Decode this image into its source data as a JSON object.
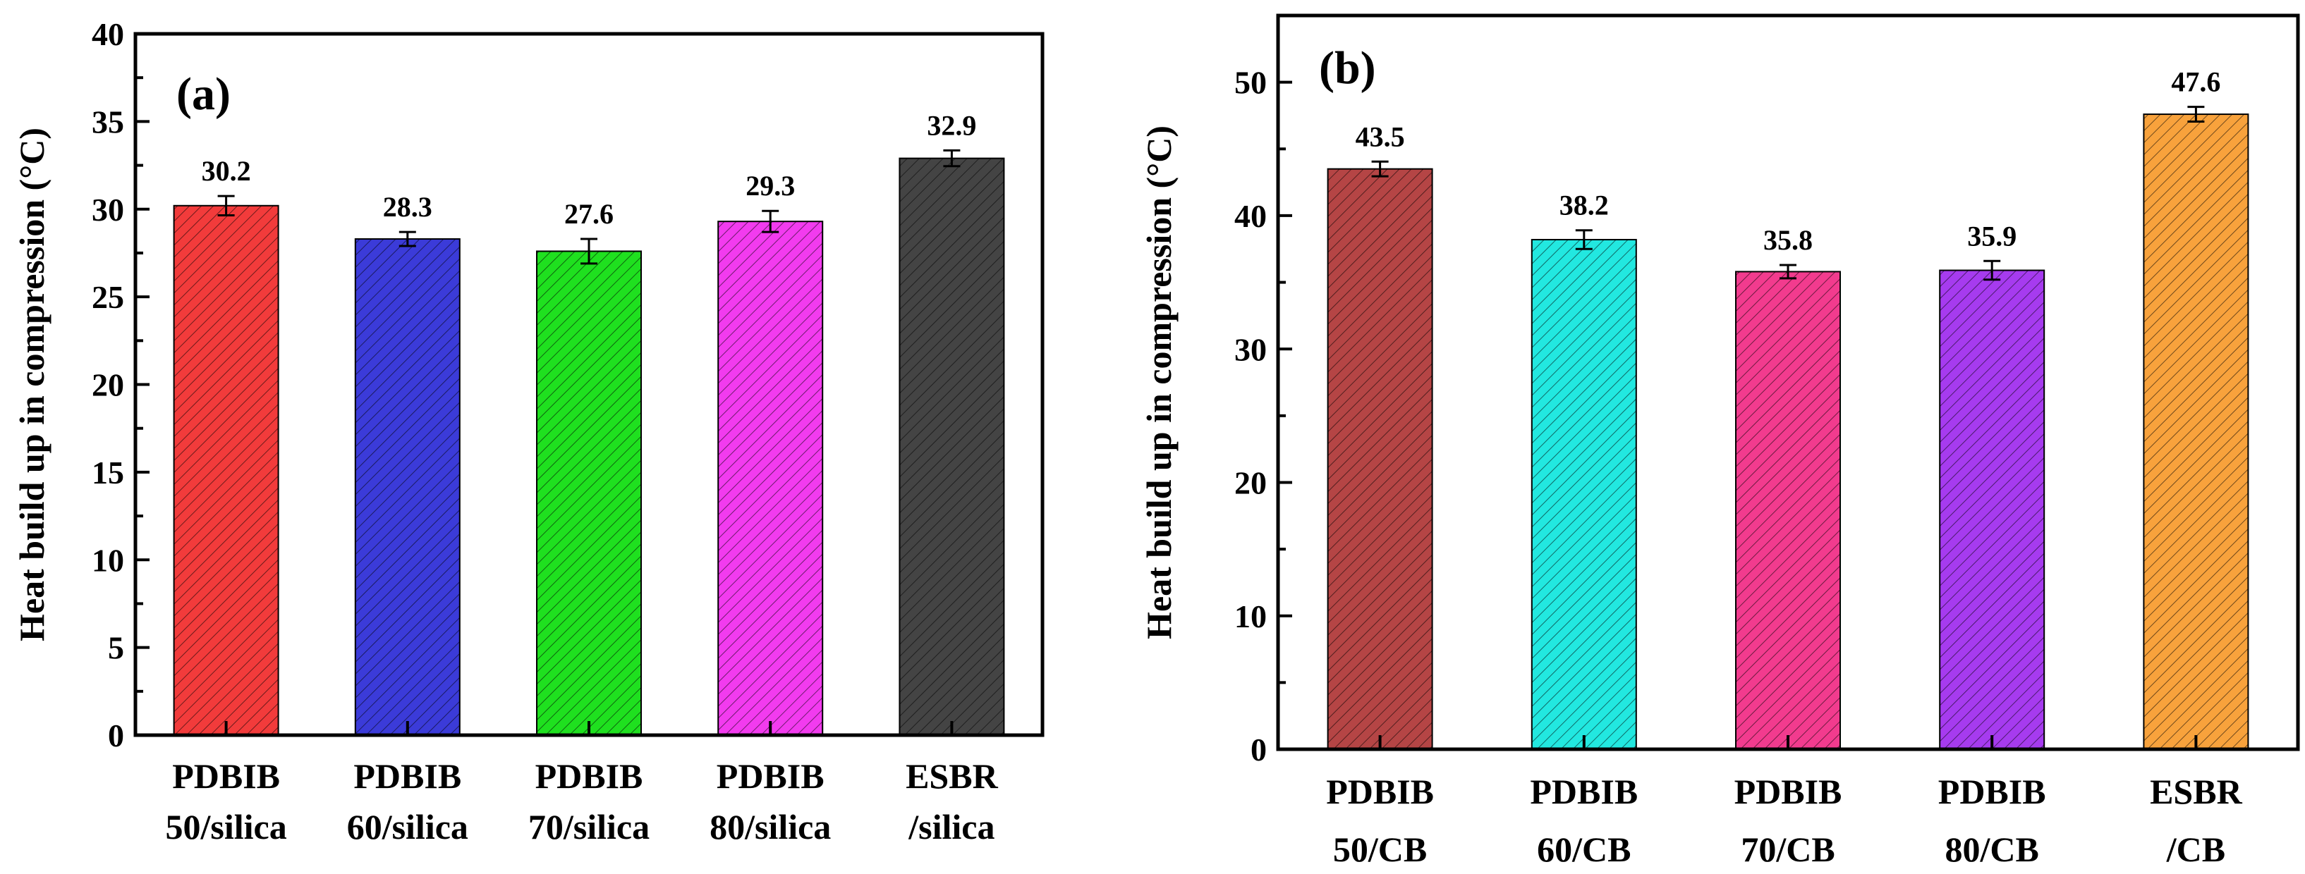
{
  "charts": [
    {
      "id": "a",
      "type": "bar",
      "panel_label": "(a)",
      "ylabel": "Heat build up in compression (°C)",
      "ylim": [
        0,
        40
      ],
      "yticks": [
        0,
        5,
        10,
        15,
        20,
        25,
        30,
        35,
        40
      ],
      "categories": [
        [
          "PDBIB",
          "50/silica"
        ],
        [
          "PDBIB",
          "60/silica"
        ],
        [
          "PDBIB",
          "70/silica"
        ],
        [
          "PDBIB",
          "80/silica"
        ],
        [
          "ESBR",
          "/silica"
        ]
      ],
      "values": [
        30.2,
        28.3,
        27.6,
        29.3,
        32.9
      ],
      "value_labels": [
        "30.2",
        "28.3",
        "27.6",
        "29.3",
        "32.9"
      ],
      "errors": [
        0.55,
        0.4,
        0.7,
        0.6,
        0.45
      ],
      "colors": [
        "#f23b3b",
        "#3b3bd9",
        "#1fe01f",
        "#f23bef",
        "#444444"
      ]
    },
    {
      "id": "b",
      "type": "bar",
      "panel_label": "(b)",
      "ylabel": "Heat build up in compression (°C)",
      "ylim": [
        0,
        55
      ],
      "yticks": [
        0,
        10,
        20,
        30,
        40,
        50
      ],
      "categories": [
        [
          "PDBIB",
          "50/CB"
        ],
        [
          "PDBIB",
          "60/CB"
        ],
        [
          "PDBIB",
          "70/CB"
        ],
        [
          "PDBIB",
          "80/CB"
        ],
        [
          "ESBR",
          "/CB"
        ]
      ],
      "values": [
        43.5,
        38.2,
        35.8,
        35.9,
        47.6
      ],
      "value_labels": [
        "43.5",
        "38.2",
        "35.8",
        "35.9",
        "47.6"
      ],
      "errors": [
        0.55,
        0.7,
        0.5,
        0.7,
        0.55
      ],
      "colors": [
        "#b54545",
        "#22e8e0",
        "#f23b8e",
        "#a63bef",
        "#f8a23c"
      ]
    }
  ]
}
